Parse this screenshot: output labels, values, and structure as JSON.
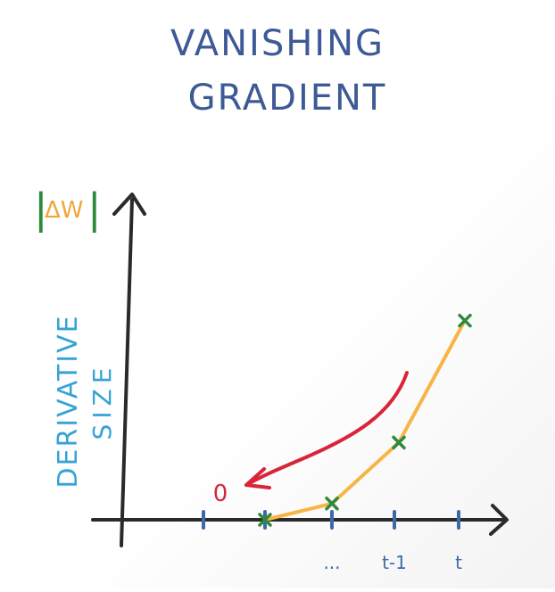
{
  "title": {
    "line1": "VANISHING",
    "line2": "GRADIENT"
  },
  "y_axis": {
    "label_main": "DERIVATIVE",
    "label_sub": "SIZE",
    "symbol_bar_left": "|",
    "symbol_text": "ΔW",
    "symbol_bar_right": "|"
  },
  "x_axis": {
    "tick_labels": [
      "",
      "",
      "...",
      "t-1",
      "t"
    ]
  },
  "annotation": {
    "text": "0"
  },
  "colors": {
    "title": "#3e5a96",
    "axis": "#2a2a2a",
    "label": "#35a3d6",
    "delta": "#f2a63a",
    "bars": "#2e8a3c",
    "curve": "#f7b545",
    "markers": "#2e8a3c",
    "arrow": "#d9253a",
    "tick": "#3d6aa6"
  },
  "chart_data": {
    "type": "line",
    "x": [
      "",
      "...",
      "t-1",
      "t"
    ],
    "series": [
      {
        "values": [
          0,
          0.08,
          0.38,
          0.98
        ]
      }
    ]
  }
}
